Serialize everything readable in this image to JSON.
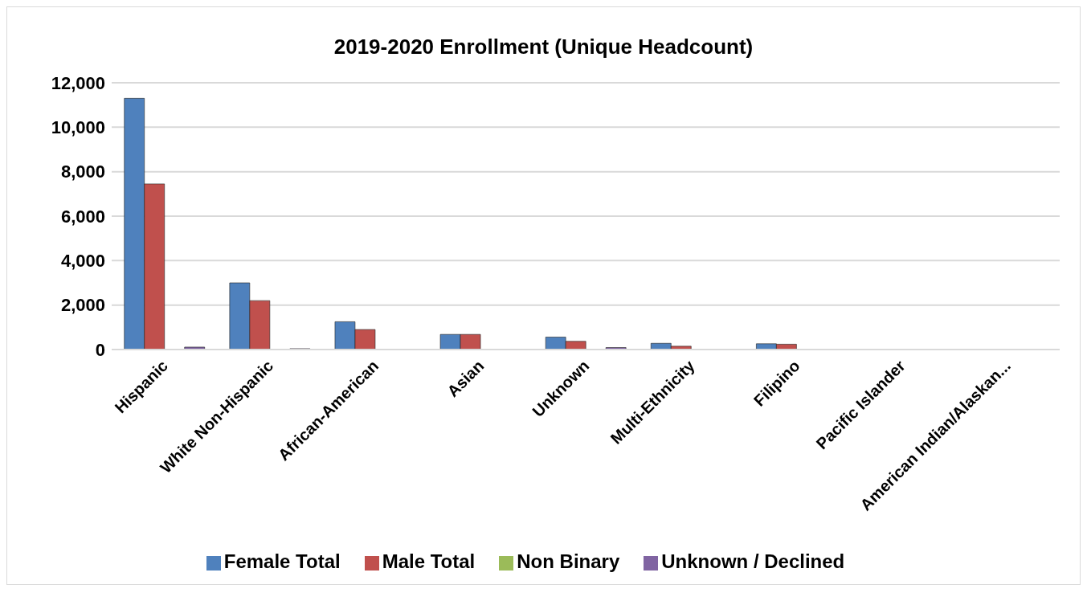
{
  "chart_data": {
    "type": "bar",
    "title": "2019-2020 Enrollment (Unique Headcount)",
    "categories": [
      "Hispanic",
      "White Non-Hispanic",
      "African-American",
      "Asian",
      "Unknown",
      "Multi-Ethnicity",
      "Filipino",
      "Pacific Islander",
      "American Indian/Alaskan..."
    ],
    "series": [
      {
        "name": "Female Total",
        "color": "#4f81bd",
        "values": [
          11300,
          3000,
          1250,
          680,
          560,
          280,
          260,
          null,
          null
        ]
      },
      {
        "name": "Male Total",
        "color": "#c0504d",
        "values": [
          7450,
          2200,
          900,
          680,
          370,
          150,
          240,
          null,
          null
        ]
      },
      {
        "name": "Non Binary",
        "color": "#9bbb59",
        "values": [
          0,
          0,
          0,
          0,
          0,
          0,
          0,
          0,
          0
        ]
      },
      {
        "name": "Unknown / Declined",
        "color": "#8064a2",
        "values": [
          110,
          40,
          0,
          0,
          90,
          0,
          0,
          0,
          0
        ]
      }
    ],
    "ylim": [
      0,
      12000
    ],
    "yticks": [
      {
        "value": 0,
        "label": "0"
      },
      {
        "value": 2000,
        "label": "2,000"
      },
      {
        "value": 4000,
        "label": "4,000"
      },
      {
        "value": 6000,
        "label": "6,000"
      },
      {
        "value": 8000,
        "label": "8,000"
      },
      {
        "value": 10000,
        "label": "10,000"
      },
      {
        "value": 12000,
        "label": "12,000"
      }
    ],
    "grid": "y",
    "legend": "bottom"
  }
}
